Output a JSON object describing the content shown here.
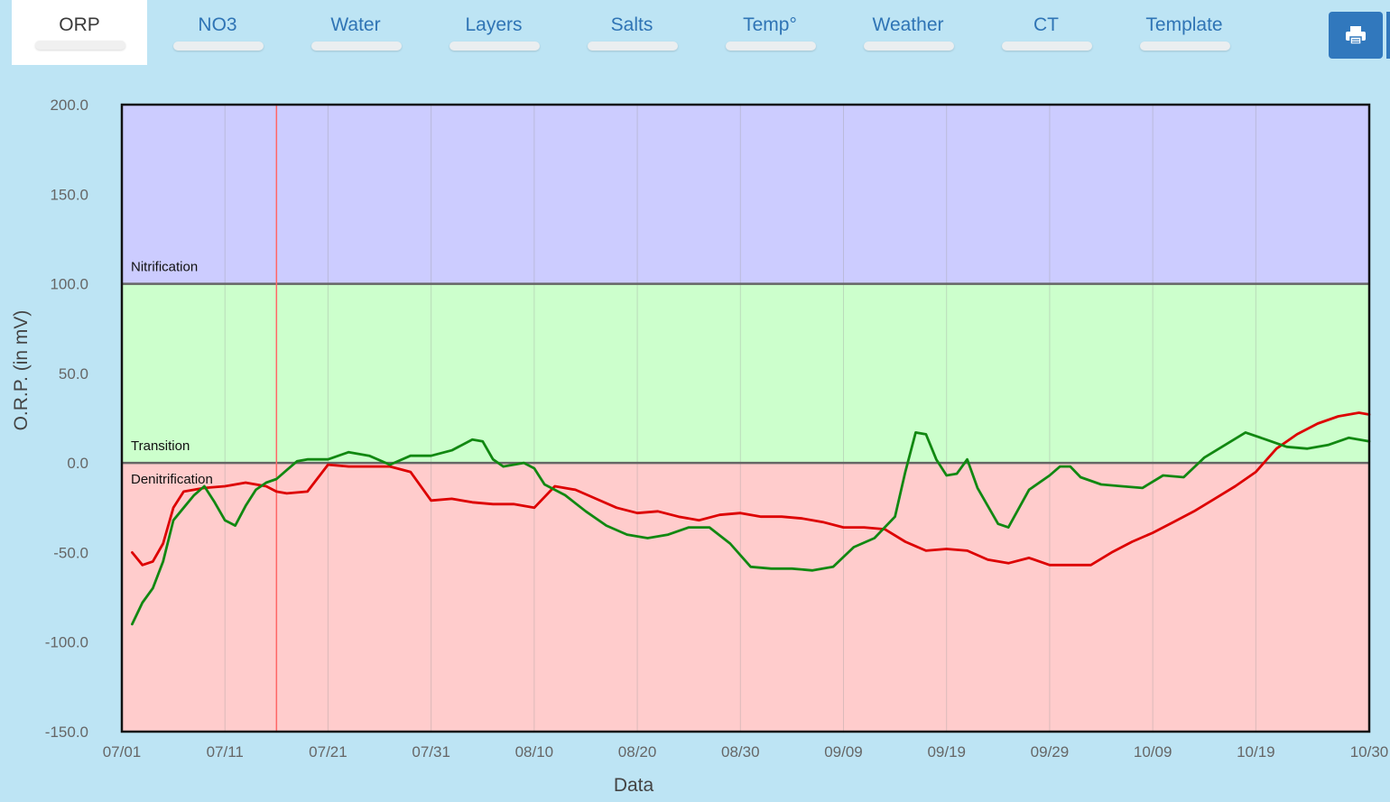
{
  "tabs": [
    {
      "label": "ORP",
      "active": true
    },
    {
      "label": "NO3",
      "active": false
    },
    {
      "label": "Water",
      "active": false
    },
    {
      "label": "Layers",
      "active": false
    },
    {
      "label": "Salts",
      "active": false
    },
    {
      "label": "Temp°",
      "active": false
    },
    {
      "label": "Weather",
      "active": false
    },
    {
      "label": "CT",
      "active": false
    },
    {
      "label": "Template",
      "active": false
    }
  ],
  "toolbar": {
    "print_icon": "printer-icon"
  },
  "colors": {
    "background": "#bde4f4",
    "accent": "#3178bd",
    "nitrification_zone": "#ccccff",
    "transition_zone": "#ccffcc",
    "denitrification_zone": "#ffcccc",
    "series_red": "#dd0000",
    "series_green": "#118811",
    "series_dark": "#3a4d12",
    "marker_line": "#ff6666"
  },
  "chart_data": {
    "type": "line",
    "xlabel": "Data",
    "ylabel": "O.R.P. (in mV)",
    "ylim": [
      -150,
      200
    ],
    "y_ticks": [
      "200.0",
      "150.0",
      "100.0",
      "50.0",
      "0.0",
      "-50.0",
      "-100.0",
      "-150.0"
    ],
    "x_range": [
      "07/01",
      "10/30"
    ],
    "x_tick_labels": [
      "07/01",
      "07/11",
      "07/21",
      "07/31",
      "08/10",
      "08/20",
      "08/30",
      "09/09",
      "09/19",
      "09/29",
      "10/09",
      "10/19",
      "10/30"
    ],
    "grid": "vertical",
    "zones": [
      {
        "label": "Nitrification",
        "from": 100,
        "to": 200
      },
      {
        "label": "Transition",
        "from": 0,
        "to": 100
      },
      {
        "label": "Denitrification",
        "from": -150,
        "to": 0
      }
    ],
    "marker_date": "07/16",
    "series": [
      {
        "color": "#dd0000",
        "points": [
          [
            "07/02",
            -50
          ],
          [
            "07/03",
            -57
          ],
          [
            "07/04",
            -55
          ],
          [
            "07/05",
            -45
          ],
          [
            "07/06",
            -25
          ],
          [
            "07/07",
            -16
          ],
          [
            "07/09",
            -14
          ],
          [
            "07/11",
            -13
          ],
          [
            "07/13",
            -11
          ],
          [
            "07/15",
            -13
          ],
          [
            "07/16",
            -16
          ],
          [
            "07/17",
            -17
          ],
          [
            "07/19",
            -16
          ],
          [
            "07/21",
            -1
          ],
          [
            "07/23",
            -2
          ],
          [
            "07/25",
            -2
          ],
          [
            "07/27",
            -2
          ],
          [
            "07/29",
            -5
          ],
          [
            "07/31",
            -21
          ],
          [
            "08/02",
            -20
          ],
          [
            "08/04",
            -22
          ],
          [
            "08/06",
            -23
          ],
          [
            "08/08",
            -23
          ],
          [
            "08/10",
            -25
          ],
          [
            "08/12",
            -13
          ],
          [
            "08/14",
            -15
          ],
          [
            "08/16",
            -20
          ],
          [
            "08/18",
            -25
          ],
          [
            "08/20",
            -28
          ],
          [
            "08/22",
            -27
          ],
          [
            "08/24",
            -30
          ],
          [
            "08/26",
            -32
          ],
          [
            "08/28",
            -29
          ],
          [
            "08/30",
            -28
          ],
          [
            "09/01",
            -30
          ],
          [
            "09/03",
            -30
          ],
          [
            "09/05",
            -31
          ],
          [
            "09/07",
            -33
          ],
          [
            "09/09",
            -36
          ],
          [
            "09/11",
            -36
          ],
          [
            "09/13",
            -37
          ],
          [
            "09/15",
            -44
          ],
          [
            "09/17",
            -49
          ],
          [
            "09/19",
            -48
          ],
          [
            "09/21",
            -49
          ],
          [
            "09/23",
            -54
          ],
          [
            "09/25",
            -56
          ],
          [
            "09/27",
            -53
          ],
          [
            "09/29",
            -57
          ],
          [
            "10/01",
            -57
          ],
          [
            "10/03",
            -57
          ],
          [
            "10/05",
            -50
          ],
          [
            "10/07",
            -44
          ],
          [
            "10/09",
            -39
          ],
          [
            "10/11",
            -33
          ],
          [
            "10/13",
            -27
          ],
          [
            "10/15",
            -20
          ],
          [
            "10/17",
            -13
          ],
          [
            "10/19",
            -5
          ],
          [
            "10/21",
            8
          ],
          [
            "10/23",
            16
          ],
          [
            "10/25",
            22
          ],
          [
            "10/27",
            26
          ],
          [
            "10/29",
            28
          ],
          [
            "10/30",
            27
          ]
        ]
      },
      {
        "color": "#118811",
        "points": [
          [
            "07/02",
            -90
          ],
          [
            "07/03",
            -78
          ],
          [
            "07/04",
            -70
          ],
          [
            "07/05",
            -55
          ],
          [
            "07/06",
            -32
          ],
          [
            "07/07",
            -25
          ],
          [
            "07/08",
            -18
          ],
          [
            "07/09",
            -13
          ],
          [
            "07/10",
            -22
          ],
          [
            "07/11",
            -32
          ],
          [
            "07/12",
            -35
          ],
          [
            "07/13",
            -24
          ],
          [
            "07/14",
            -15
          ],
          [
            "07/15",
            -11
          ],
          [
            "07/16",
            -9
          ],
          [
            "07/17",
            -4
          ],
          [
            "07/18",
            1
          ],
          [
            "07/19",
            2
          ],
          [
            "07/21",
            2
          ],
          [
            "07/23",
            6
          ],
          [
            "07/25",
            4
          ],
          [
            "07/27",
            -1
          ],
          [
            "07/29",
            4
          ],
          [
            "07/31",
            4
          ],
          [
            "08/02",
            7
          ],
          [
            "08/04",
            13
          ],
          [
            "08/05",
            12
          ],
          [
            "08/06",
            2
          ],
          [
            "08/07",
            -2
          ],
          [
            "08/09",
            0
          ],
          [
            "08/10",
            -3
          ],
          [
            "08/11",
            -12
          ],
          [
            "08/13",
            -18
          ],
          [
            "08/15",
            -27
          ],
          [
            "08/17",
            -35
          ],
          [
            "08/19",
            -40
          ],
          [
            "08/21",
            -42
          ],
          [
            "08/23",
            -40
          ],
          [
            "08/25",
            -36
          ],
          [
            "08/27",
            -36
          ],
          [
            "08/29",
            -45
          ],
          [
            "08/31",
            -58
          ],
          [
            "09/02",
            -59
          ],
          [
            "09/04",
            -59
          ],
          [
            "09/06",
            -60
          ],
          [
            "09/08",
            -58
          ],
          [
            "09/10",
            -47
          ],
          [
            "09/12",
            -42
          ],
          [
            "09/14",
            -30
          ],
          [
            "09/15",
            -5
          ],
          [
            "09/16",
            17
          ],
          [
            "09/17",
            16
          ],
          [
            "09/18",
            2
          ],
          [
            "09/19",
            -7
          ],
          [
            "09/20",
            -6
          ],
          [
            "09/21",
            2
          ],
          [
            "09/22",
            -14
          ],
          [
            "09/24",
            -34
          ],
          [
            "09/25",
            -36
          ],
          [
            "09/27",
            -15
          ],
          [
            "09/29",
            -7
          ],
          [
            "09/30",
            -2
          ],
          [
            "10/01",
            -2
          ],
          [
            "10/02",
            -8
          ],
          [
            "10/04",
            -12
          ],
          [
            "10/06",
            -13
          ],
          [
            "10/08",
            -14
          ],
          [
            "10/10",
            -7
          ],
          [
            "10/12",
            -8
          ],
          [
            "10/14",
            3
          ],
          [
            "10/16",
            10
          ],
          [
            "10/18",
            17
          ],
          [
            "10/20",
            13
          ],
          [
            "10/22",
            9
          ],
          [
            "10/24",
            8
          ],
          [
            "10/26",
            10
          ],
          [
            "10/28",
            14
          ],
          [
            "10/30",
            12
          ]
        ]
      }
    ]
  }
}
